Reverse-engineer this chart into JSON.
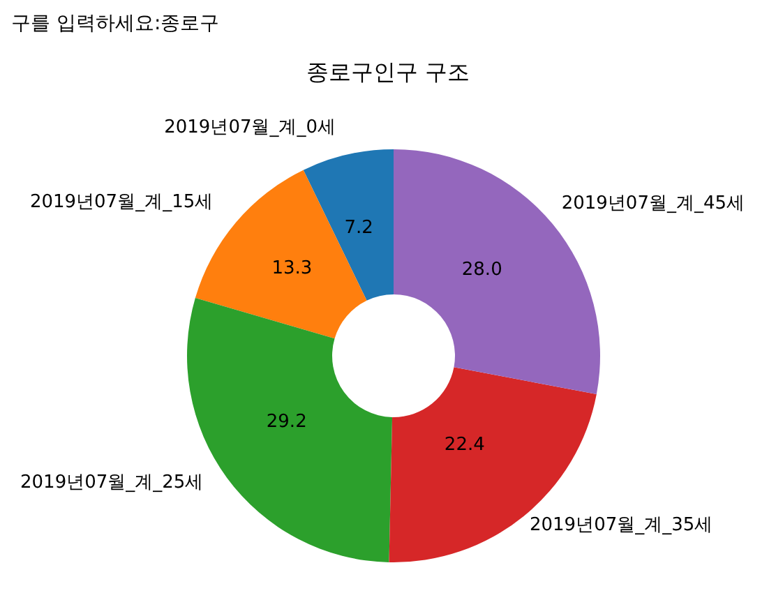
{
  "chart_data": {
    "type": "donut",
    "title": "종로구인구 구조",
    "annotations": [
      "구를 입력하세요:종로구"
    ],
    "categories": [
      "2019년07월_계_0세",
      "2019년07월_계_15세",
      "2019년07월_계_25세",
      "2019년07월_계_35세",
      "2019년07월_계_45세"
    ],
    "values": [
      7.2,
      13.3,
      29.2,
      22.4,
      28.0
    ],
    "value_labels": [
      "7.2",
      "13.3",
      "29.2",
      "22.4",
      "28.0"
    ],
    "colors": [
      "#1f77b4",
      "#ff7f0e",
      "#2ca02c",
      "#d62728",
      "#9467bd"
    ],
    "legend": false
  }
}
